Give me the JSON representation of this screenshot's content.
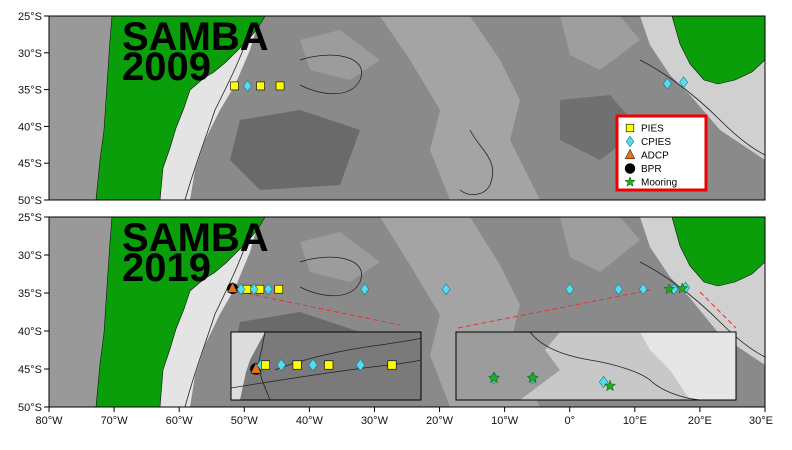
{
  "panels": [
    {
      "title_line1": "SAMBA",
      "title_line2": "2009"
    },
    {
      "title_line1": "SAMBA",
      "title_line2": "2019"
    }
  ],
  "lat_ticks": [
    "25°S",
    "30°S",
    "35°S",
    "40°S",
    "45°S",
    "50°S"
  ],
  "lon_ticks": [
    "80°W",
    "70°W",
    "60°W",
    "50°W",
    "40°W",
    "30°W",
    "20°W",
    "10°W",
    "0°",
    "10°E",
    "20°E",
    "30°E"
  ],
  "legend": {
    "items": [
      {
        "label": "PIES",
        "marker": "square",
        "color": "#ffff00"
      },
      {
        "label": "CPIES",
        "marker": "diamond",
        "color": "#55ddee"
      },
      {
        "label": "ADCP",
        "marker": "triangle",
        "color": "#e8701a"
      },
      {
        "label": "BPR",
        "marker": "circle",
        "color": "#000000"
      },
      {
        "label": "Mooring",
        "marker": "star",
        "color": "#22aa22"
      }
    ],
    "border_color": "#ee0000"
  },
  "colors": {
    "land": "#0b9e0b",
    "track": "#e83030"
  },
  "stations_2009": [
    {
      "type": "PIES",
      "lon": -51.5,
      "lat": -34.5
    },
    {
      "type": "CPIES",
      "lon": -49.5,
      "lat": -34.5
    },
    {
      "type": "PIES",
      "lon": -47.5,
      "lat": -34.5
    },
    {
      "type": "PIES",
      "lon": -44.5,
      "lat": -34.5
    },
    {
      "type": "CPIES",
      "lon": 15.0,
      "lat": -34.2
    },
    {
      "type": "CPIES",
      "lon": 17.5,
      "lat": -34.0
    }
  ],
  "stations_2019": [
    {
      "type": "BPR",
      "lon": -51.8,
      "lat": -34.4
    },
    {
      "type": "ADCP",
      "lon": -51.8,
      "lat": -34.4
    },
    {
      "type": "CPIES",
      "lon": -50.5,
      "lat": -34.5
    },
    {
      "type": "PIES",
      "lon": -49.6,
      "lat": -34.5
    },
    {
      "type": "CPIES",
      "lon": -48.5,
      "lat": -34.5
    },
    {
      "type": "PIES",
      "lon": -47.6,
      "lat": -34.5
    },
    {
      "type": "CPIES",
      "lon": -46.3,
      "lat": -34.5
    },
    {
      "type": "PIES",
      "lon": -44.7,
      "lat": -34.5
    },
    {
      "type": "CPIES",
      "lon": -31.5,
      "lat": -34.5
    },
    {
      "type": "CPIES",
      "lon": -19.0,
      "lat": -34.5
    },
    {
      "type": "CPIES",
      "lon": 0.0,
      "lat": -34.5
    },
    {
      "type": "CPIES",
      "lon": 7.5,
      "lat": -34.5
    },
    {
      "type": "CPIES",
      "lon": 11.3,
      "lat": -34.5
    },
    {
      "type": "Mooring",
      "lon": 15.3,
      "lat": -34.5
    },
    {
      "type": "CPIES",
      "lon": 16.0,
      "lat": -34.5
    },
    {
      "type": "Mooring",
      "lon": 17.3,
      "lat": -34.4
    },
    {
      "type": "CPIES",
      "lon": 17.8,
      "lat": -34.3
    }
  ],
  "inset_west": [
    {
      "type": "BPR",
      "lon": -51.9,
      "lat": -34.4
    },
    {
      "type": "ADCP",
      "lon": -51.9,
      "lat": -34.4
    },
    {
      "type": "CPIES",
      "lon": -51.4,
      "lat": -34.5
    },
    {
      "type": "PIES",
      "lon": -51.0,
      "lat": -34.5
    },
    {
      "type": "CPIES",
      "lon": -49.5,
      "lat": -34.5
    },
    {
      "type": "PIES",
      "lon": -48.0,
      "lat": -34.5
    },
    {
      "type": "CPIES",
      "lon": -46.5,
      "lat": -34.5
    },
    {
      "type": "PIES",
      "lon": -45.0,
      "lat": -34.5
    },
    {
      "type": "CPIES",
      "lon": -42.0,
      "lat": -34.5
    },
    {
      "type": "PIES",
      "lon": -39.0,
      "lat": -34.5
    }
  ],
  "inset_east": [
    {
      "type": "CPIES",
      "lon": -10.5,
      "lat": -34.6
    },
    {
      "type": "Mooring",
      "lon": -10.5,
      "lat": -34.6
    },
    {
      "type": "CPIES",
      "lon": -4.5,
      "lat": -34.6
    },
    {
      "type": "Mooring",
      "lon": -4.5,
      "lat": -34.6
    },
    {
      "type": "CPIES",
      "lon": 6.5,
      "lat": -34.5
    },
    {
      "type": "Mooring",
      "lon": 7.5,
      "lat": -34.4
    }
  ]
}
